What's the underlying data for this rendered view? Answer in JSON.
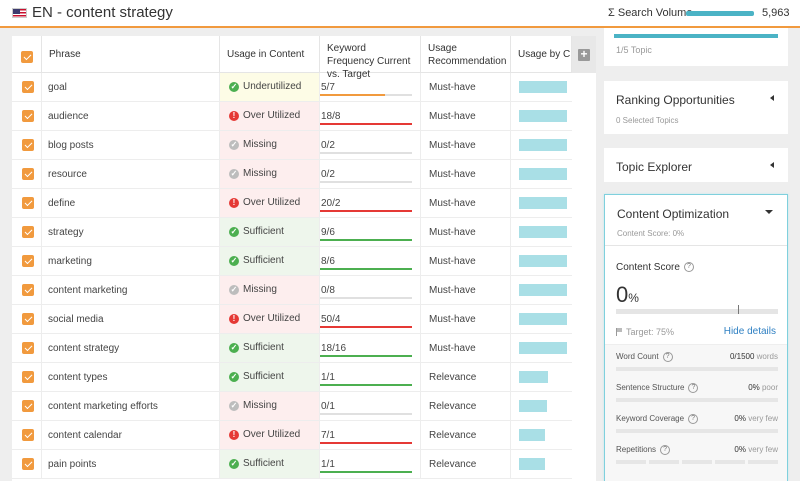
{
  "header": {
    "title": "EN - content strategy",
    "search_volume_label": "Σ Search Volume",
    "search_volume_value": "5,963",
    "accent_color": "#f19a3e"
  },
  "table": {
    "columns": {
      "phrase": "Phrase",
      "usage": "Usage in Content",
      "freq": "Keyword Frequency Current vs. Target",
      "rec": "Usage Recommendation",
      "ubc": "Usage by C"
    },
    "add_column_icon": "plus-icon",
    "rows": [
      {
        "phrase": "goal",
        "status": "Underutilized",
        "kind": "under",
        "icon": "check-circle-icon",
        "freq": "5/7",
        "fill": 0.71,
        "fill_color": "#f19a3e",
        "rec": "Must-have",
        "ubc": 1.0
      },
      {
        "phrase": "audience",
        "status": "Over Utilized",
        "kind": "over",
        "icon": "alert-circle-icon",
        "freq": "18/8",
        "fill": 1.0,
        "fill_color": "#e53935",
        "rec": "Must-have",
        "ubc": 1.0
      },
      {
        "phrase": "blog posts",
        "status": "Missing",
        "kind": "missing",
        "icon": "check-circle-gray-icon",
        "freq": "0/2",
        "fill": 0,
        "fill_color": "#e0e0e0",
        "rec": "Must-have",
        "ubc": 1.0
      },
      {
        "phrase": "resource",
        "status": "Missing",
        "kind": "missing",
        "icon": "check-circle-gray-icon",
        "freq": "0/2",
        "fill": 0,
        "fill_color": "#e0e0e0",
        "rec": "Must-have",
        "ubc": 1.0
      },
      {
        "phrase": "define",
        "status": "Over Utilized",
        "kind": "over",
        "icon": "alert-circle-icon",
        "freq": "20/2",
        "fill": 1.0,
        "fill_color": "#e53935",
        "rec": "Must-have",
        "ubc": 1.0
      },
      {
        "phrase": "strategy",
        "status": "Sufficient",
        "kind": "suff",
        "icon": "check-circle-icon",
        "freq": "9/6",
        "fill": 1.0,
        "fill_color": "#4caf50",
        "rec": "Must-have",
        "ubc": 1.0
      },
      {
        "phrase": "marketing",
        "status": "Sufficient",
        "kind": "suff",
        "icon": "check-circle-icon",
        "freq": "8/6",
        "fill": 1.0,
        "fill_color": "#4caf50",
        "rec": "Must-have",
        "ubc": 1.0
      },
      {
        "phrase": "content marketing",
        "status": "Missing",
        "kind": "missing",
        "icon": "check-circle-gray-icon",
        "freq": "0/8",
        "fill": 0,
        "fill_color": "#e0e0e0",
        "rec": "Must-have",
        "ubc": 1.0
      },
      {
        "phrase": "social media",
        "status": "Over Utilized",
        "kind": "over",
        "icon": "alert-circle-icon",
        "freq": "50/4",
        "fill": 1.0,
        "fill_color": "#e53935",
        "rec": "Must-have",
        "ubc": 1.0
      },
      {
        "phrase": "content strategy",
        "status": "Sufficient",
        "kind": "suff",
        "icon": "check-circle-icon",
        "freq": "18/16",
        "fill": 1.0,
        "fill_color": "#4caf50",
        "rec": "Must-have",
        "ubc": 1.0
      },
      {
        "phrase": "content types",
        "status": "Sufficient",
        "kind": "suff",
        "icon": "check-circle-icon",
        "freq": "1/1",
        "fill": 1.0,
        "fill_color": "#4caf50",
        "rec": "Relevance",
        "ubc": 0.6
      },
      {
        "phrase": "content marketing efforts",
        "status": "Missing",
        "kind": "missing",
        "icon": "check-circle-gray-icon",
        "freq": "0/1",
        "fill": 0,
        "fill_color": "#e0e0e0",
        "rec": "Relevance",
        "ubc": 0.58
      },
      {
        "phrase": "content calendar",
        "status": "Over Utilized",
        "kind": "over",
        "icon": "alert-circle-icon",
        "freq": "7/1",
        "fill": 1.0,
        "fill_color": "#e53935",
        "rec": "Relevance",
        "ubc": 0.55
      },
      {
        "phrase": "pain points",
        "status": "Sufficient",
        "kind": "suff",
        "icon": "check-circle-icon",
        "freq": "1/1",
        "fill": 1.0,
        "fill_color": "#4caf50",
        "rec": "Relevance",
        "ubc": 0.55
      }
    ]
  },
  "sidebar": {
    "topics_sub": "1/5 Topic",
    "ranking": {
      "title": "Ranking Opportunities",
      "sub": "0 Selected Topics"
    },
    "explorer": {
      "title": "Topic Explorer"
    },
    "optimization": {
      "title": "Content Optimization",
      "sub": "Content Score: 0%",
      "score_label": "Content Score",
      "score_value": "0",
      "score_unit": "%",
      "target": "Target: 75%",
      "hide_details": "Hide details",
      "metrics": [
        {
          "label": "Word Count",
          "value": "0/1500",
          "unit": "words"
        },
        {
          "label": "Sentence Structure",
          "value": "0%",
          "unit": "poor"
        },
        {
          "label": "Keyword Coverage",
          "value": "0%",
          "unit": "very few"
        },
        {
          "label": "Repetitions",
          "value": "0%",
          "unit": "very few"
        }
      ]
    }
  }
}
